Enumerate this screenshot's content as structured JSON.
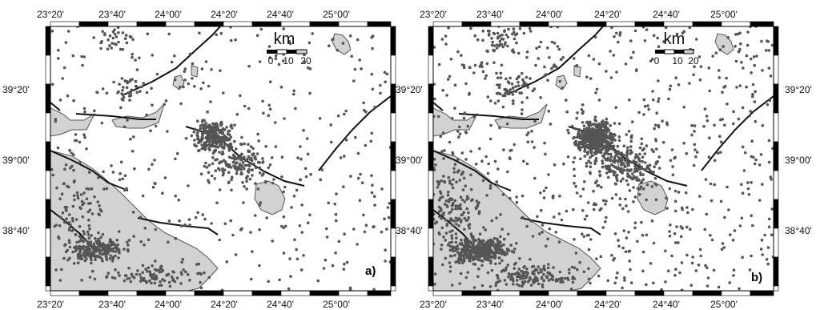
{
  "colors": {
    "land": "#d2d2d2",
    "coast": "#555555",
    "fault": "#111111",
    "epicenter": "#555555",
    "frame_dark": "#000000",
    "frame_light": "#ffffff"
  },
  "maps": [
    {
      "panel_label": "a)",
      "lon_ticks": [
        "23°20'",
        "23°40'",
        "24°00'",
        "24°20'",
        "24°40'",
        "25°00'"
      ],
      "lat_ticks": [
        "39°20'",
        "39°00'",
        "38°40'"
      ],
      "scale_bar": {
        "unit": "km",
        "ticks": [
          "0",
          "10",
          "20"
        ]
      },
      "epicenter_density": "moderate"
    },
    {
      "panel_label": "b)",
      "lon_ticks": [
        "23°20'",
        "23°40'",
        "24°00'",
        "24°20'",
        "24°40'",
        "25°00'"
      ],
      "lat_ticks": [
        "39°20'",
        "39°00'",
        "38°40'"
      ],
      "scale_bar": {
        "unit": "km",
        "ticks": [
          "0",
          "10",
          "20"
        ]
      },
      "epicenter_density": "dense"
    }
  ]
}
